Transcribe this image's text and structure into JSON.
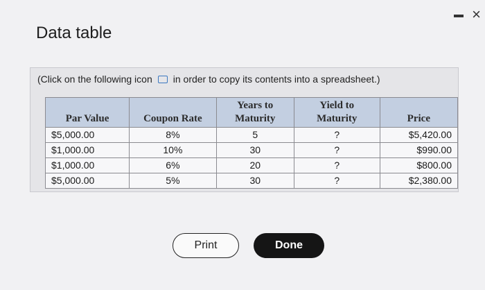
{
  "window": {
    "title": "Data table",
    "minimize_label": "-",
    "close_label": "×"
  },
  "instruction": {
    "before": "(Click on the following icon",
    "after": "in order to copy its contents into a spreadsheet.)",
    "icon": "copy-icon"
  },
  "table": {
    "headers": {
      "par_value": "Par Value",
      "coupon_rate": "Coupon Rate",
      "years_line1": "Years to",
      "years_line2": "Maturity",
      "yield_line1": "Yield to",
      "yield_line2": "Maturity",
      "price": "Price"
    },
    "rows": [
      {
        "par_value": "$5,000.00",
        "coupon_rate": "8%",
        "years": "5",
        "yield": "?",
        "price": "$5,420.00"
      },
      {
        "par_value": "$1,000.00",
        "coupon_rate": "10%",
        "years": "30",
        "yield": "?",
        "price": "$990.00"
      },
      {
        "par_value": "$1,000.00",
        "coupon_rate": "6%",
        "years": "20",
        "yield": "?",
        "price": "$800.00"
      },
      {
        "par_value": "$5,000.00",
        "coupon_rate": "5%",
        "years": "30",
        "yield": "?",
        "price": "$2,380.00"
      }
    ]
  },
  "buttons": {
    "print": "Print",
    "done": "Done"
  }
}
